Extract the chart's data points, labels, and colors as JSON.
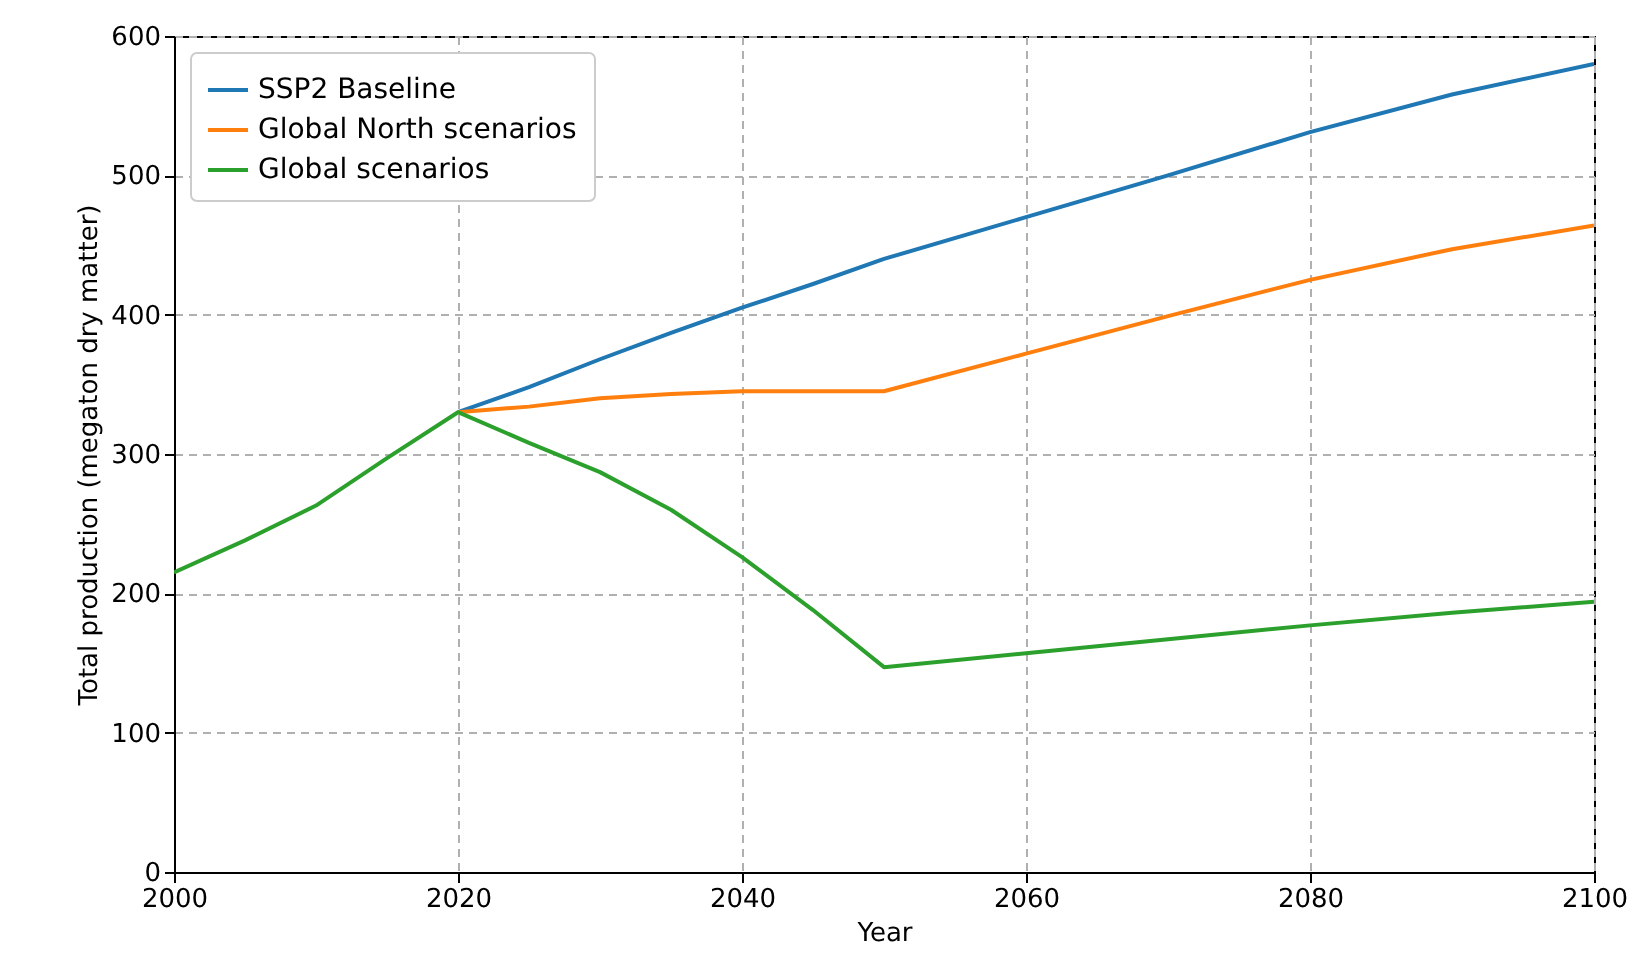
{
  "chart_data": {
    "type": "line",
    "xlabel": "Year",
    "ylabel": "Total production (megaton dry matter)",
    "x": [
      2000,
      2005,
      2010,
      2015,
      2020,
      2025,
      2030,
      2035,
      2040,
      2045,
      2050,
      2060,
      2070,
      2080,
      2090,
      2100
    ],
    "series": [
      {
        "name": "SSP2 Baseline",
        "color": "#1f77b4",
        "values": [
          null,
          null,
          null,
          null,
          330,
          348,
          368,
          387,
          405,
          422,
          440,
          470,
          500,
          531,
          558,
          580
        ]
      },
      {
        "name": "Global North scenarios",
        "color": "#ff7f0e",
        "values": [
          null,
          null,
          null,
          null,
          330,
          334,
          340,
          343,
          345,
          345,
          345,
          372,
          399,
          425,
          447,
          464
        ]
      },
      {
        "name": "Global scenarios",
        "color": "#2ca02c",
        "values": [
          215,
          238,
          263,
          297,
          330,
          308,
          287,
          260,
          226,
          188,
          147,
          157,
          167,
          177,
          186,
          194
        ]
      }
    ],
    "xlim": [
      2000,
      2100
    ],
    "xticks": [
      2000,
      2020,
      2040,
      2060,
      2080,
      2100
    ],
    "ylim": [
      0,
      600
    ],
    "yticks": [
      0,
      100,
      200,
      300,
      400,
      500,
      600
    ],
    "grid": true,
    "legend": "top left"
  }
}
